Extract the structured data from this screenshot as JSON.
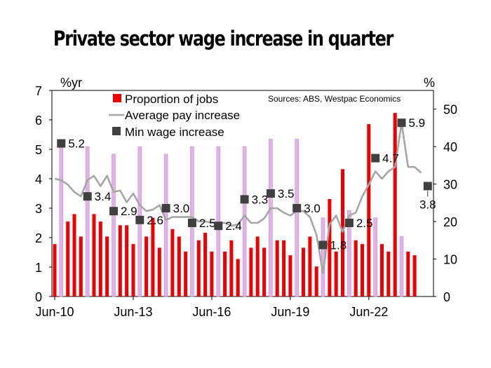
{
  "title": "Private sector wage increase in quarter",
  "source_note": "Sources: ABS, Westpac Economics",
  "colors": {
    "jobs_bar": "#ee0000",
    "jobs_bar_highlight": "#e2b2e6",
    "jobs_bar_highlight_border": "#c98fcf",
    "avg_line": "#a6a6a6",
    "min_marker": "#404040"
  },
  "chart_data": {
    "type": "bar",
    "left_axis": {
      "unit": "%yr",
      "min": 0,
      "max": 7,
      "ticks": [
        0,
        1,
        2,
        3,
        4,
        5,
        6,
        7
      ]
    },
    "right_axis": {
      "unit": "%",
      "min": 0,
      "max": 55,
      "ticks": [
        0,
        10,
        20,
        30,
        40,
        50
      ]
    },
    "x_tick_labels": [
      {
        "label": "Jun-10",
        "index": 0
      },
      {
        "label": "Jun-13",
        "index": 12
      },
      {
        "label": "Jun-16",
        "index": 24
      },
      {
        "label": "Jun-19",
        "index": 36
      },
      {
        "label": "Jun-22",
        "index": 48
      }
    ],
    "series": [
      {
        "name": "Proportion of jobs",
        "axis": "right",
        "kind": "bar",
        "values": [
          14,
          40,
          20,
          22,
          16,
          40,
          22,
          20,
          16,
          38,
          19,
          19,
          14,
          40,
          16,
          21,
          13,
          38,
          18,
          16,
          12,
          40,
          15,
          17,
          12,
          40,
          12,
          15,
          10,
          40,
          13,
          16,
          13,
          42,
          15,
          15,
          11,
          42,
          13,
          16,
          8,
          21,
          26,
          12,
          34,
          23,
          15,
          14,
          46,
          21,
          14,
          12,
          49,
          16,
          12,
          11
        ],
        "highlighted_quarters": [
          1,
          5,
          9,
          13,
          17,
          21,
          25,
          29,
          33,
          37,
          41,
          45,
          49,
          53
        ]
      },
      {
        "name": "Average pay increase",
        "axis": "left",
        "kind": "line",
        "values": [
          4.0,
          3.95,
          3.8,
          3.55,
          3.4,
          3.95,
          4.1,
          3.75,
          4.1,
          3.55,
          3.6,
          3.2,
          3.5,
          3.1,
          2.9,
          2.95,
          3.1,
          2.6,
          2.7,
          2.7,
          2.7,
          2.7,
          2.55,
          2.55,
          2.5,
          2.5,
          2.5,
          2.4,
          2.45,
          2.75,
          2.5,
          2.5,
          2.65,
          3.0,
          3.0,
          2.85,
          2.75,
          2.9,
          2.9,
          2.7,
          2.1,
          0.8,
          2.45,
          2.75,
          2.2,
          2.75,
          2.85,
          3.4,
          3.8,
          4.25,
          4.0,
          4.25,
          4.4,
          5.9,
          4.4,
          4.4,
          4.2
        ]
      },
      {
        "name": "Min wage increase",
        "axis": "left",
        "kind": "marker",
        "points": [
          {
            "index": 1,
            "value": 5.2,
            "label": "5.2"
          },
          {
            "index": 5,
            "value": 3.4,
            "label": "3.4"
          },
          {
            "index": 9,
            "value": 2.9,
            "label": "2.9"
          },
          {
            "index": 13,
            "value": 2.6,
            "label": "2.6"
          },
          {
            "index": 17,
            "value": 3.0,
            "label": "3.0"
          },
          {
            "index": 21,
            "value": 2.5,
            "label": "2.5"
          },
          {
            "index": 25,
            "value": 2.4,
            "label": "2.4"
          },
          {
            "index": 29,
            "value": 3.3,
            "label": "3.3"
          },
          {
            "index": 33,
            "value": 3.5,
            "label": "3.5"
          },
          {
            "index": 37,
            "value": 3.0,
            "label": "3.0"
          },
          {
            "index": 41,
            "value": 1.75,
            "label": "1.8"
          },
          {
            "index": 45,
            "value": 2.5,
            "label": "2.5"
          },
          {
            "index": 49,
            "value": 4.7,
            "label": "4.7"
          },
          {
            "index": 53,
            "value": 5.9,
            "label": "5.9"
          },
          {
            "index": 57,
            "value": 3.75,
            "label": "3.8"
          }
        ]
      }
    ],
    "legend": {
      "position": "top-left"
    }
  }
}
